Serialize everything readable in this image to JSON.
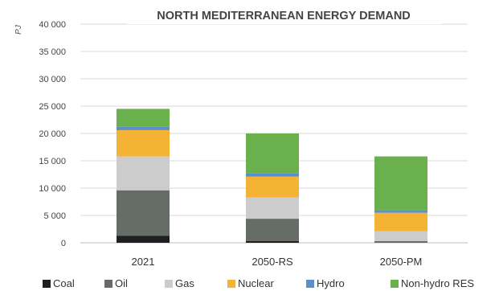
{
  "chart_data": {
    "type": "bar",
    "stacked": true,
    "title": "NORTH MEDITERRANEAN ENERGY DEMAND",
    "ylabel": "PJ",
    "xlabel": "",
    "ylim": [
      0,
      40000
    ],
    "yticks": [
      0,
      5000,
      10000,
      15000,
      20000,
      25000,
      30000,
      35000,
      40000
    ],
    "ytick_labels": [
      "0",
      "5 000",
      "10 000",
      "15 000",
      "20 000",
      "25 000",
      "30 000",
      "35 000",
      "40 000"
    ],
    "grid": true,
    "legend_position": "bottom",
    "categories": [
      "2021",
      "2050-RS",
      "2050-PM"
    ],
    "series": [
      {
        "name": "Coal",
        "color": "#1f1f1f",
        "values": [
          1300,
          300,
          0
        ]
      },
      {
        "name": "Oil",
        "color": "#666d66",
        "values": [
          8300,
          4100,
          300
        ]
      },
      {
        "name": "Gas",
        "color": "#cccccc",
        "values": [
          6200,
          3900,
          1800
        ]
      },
      {
        "name": "Nuclear",
        "color": "#f5b335",
        "values": [
          4800,
          3800,
          3400
        ]
      },
      {
        "name": "Hydro",
        "color": "#5b8fc9",
        "values": [
          600,
          600,
          500
        ]
      },
      {
        "name": "Non-hydro RES",
        "color": "#6ab04c",
        "values": [
          3300,
          7300,
          9800
        ]
      }
    ]
  }
}
